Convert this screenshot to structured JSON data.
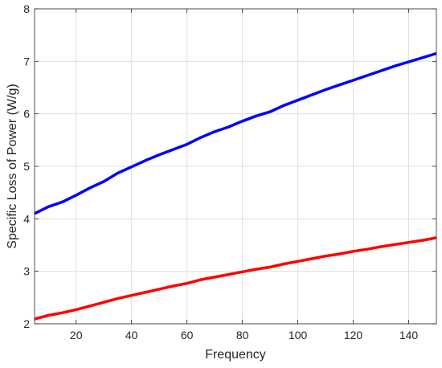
{
  "chart_data": {
    "type": "line",
    "title": "",
    "xlabel": "Frequency",
    "ylabel": "Specific Loss of Power (W/g)",
    "xlim": [
      5,
      150
    ],
    "ylim": [
      2,
      8
    ],
    "xticks": [
      20,
      40,
      60,
      80,
      100,
      120,
      140
    ],
    "yticks": [
      2,
      3,
      4,
      5,
      6,
      7,
      8
    ],
    "grid": true,
    "legend": "none",
    "series": [
      {
        "color": "#0000ff",
        "x": [
          5,
          10,
          15,
          20,
          25,
          30,
          35,
          40,
          45,
          50,
          55,
          60,
          65,
          70,
          75,
          80,
          85,
          90,
          95,
          100,
          105,
          110,
          115,
          120,
          125,
          130,
          135,
          140,
          145,
          150
        ],
        "y": [
          4.1,
          4.23,
          4.32,
          4.45,
          4.59,
          4.71,
          4.87,
          4.99,
          5.11,
          5.22,
          5.32,
          5.42,
          5.55,
          5.66,
          5.75,
          5.86,
          5.96,
          6.04,
          6.16,
          6.26,
          6.36,
          6.46,
          6.55,
          6.64,
          6.73,
          6.82,
          6.91,
          6.99,
          7.07,
          7.15
        ]
      },
      {
        "color": "#ff0000",
        "x": [
          5,
          10,
          15,
          20,
          25,
          30,
          35,
          40,
          45,
          50,
          55,
          60,
          65,
          70,
          75,
          80,
          85,
          90,
          95,
          100,
          105,
          110,
          115,
          120,
          125,
          130,
          135,
          140,
          145,
          150
        ],
        "y": [
          2.09,
          2.16,
          2.21,
          2.27,
          2.34,
          2.41,
          2.48,
          2.54,
          2.6,
          2.66,
          2.72,
          2.77,
          2.84,
          2.89,
          2.94,
          2.99,
          3.04,
          3.08,
          3.14,
          3.19,
          3.24,
          3.29,
          3.33,
          3.38,
          3.42,
          3.47,
          3.51,
          3.55,
          3.59,
          3.64
        ]
      }
    ]
  }
}
